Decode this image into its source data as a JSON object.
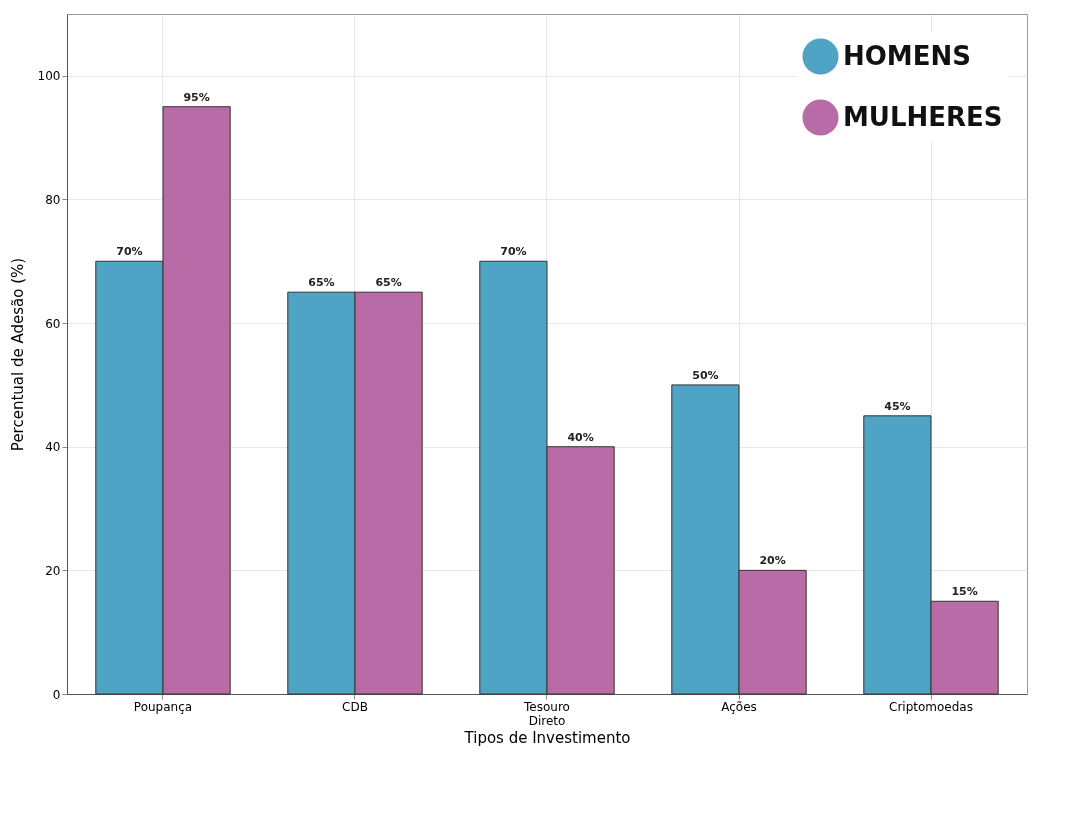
{
  "chart_data": {
    "type": "bar",
    "xlabel": "Tipos de Investimento",
    "ylabel": "Percentual de Adesão (%)",
    "categories": [
      "Poupança",
      "CDB",
      "Tesouro Direto",
      "Ações",
      "Criptomoedas"
    ],
    "series": [
      {
        "name": "HOMENS",
        "color": "#4fa3c4",
        "values": [
          70,
          65,
          70,
          50,
          45
        ],
        "value_labels": [
          "70%",
          "65%",
          "70%",
          "50%",
          "45%"
        ]
      },
      {
        "name": "MULHERES",
        "color": "#b96ba7",
        "values": [
          95,
          65,
          40,
          20,
          15
        ],
        "value_labels": [
          "95%",
          "65%",
          "40%",
          "20%",
          "15%"
        ]
      }
    ],
    "ylim": [
      0,
      110
    ],
    "yticks": [
      0,
      20,
      40,
      60,
      80,
      100
    ],
    "grid": true,
    "legend": "top right"
  }
}
